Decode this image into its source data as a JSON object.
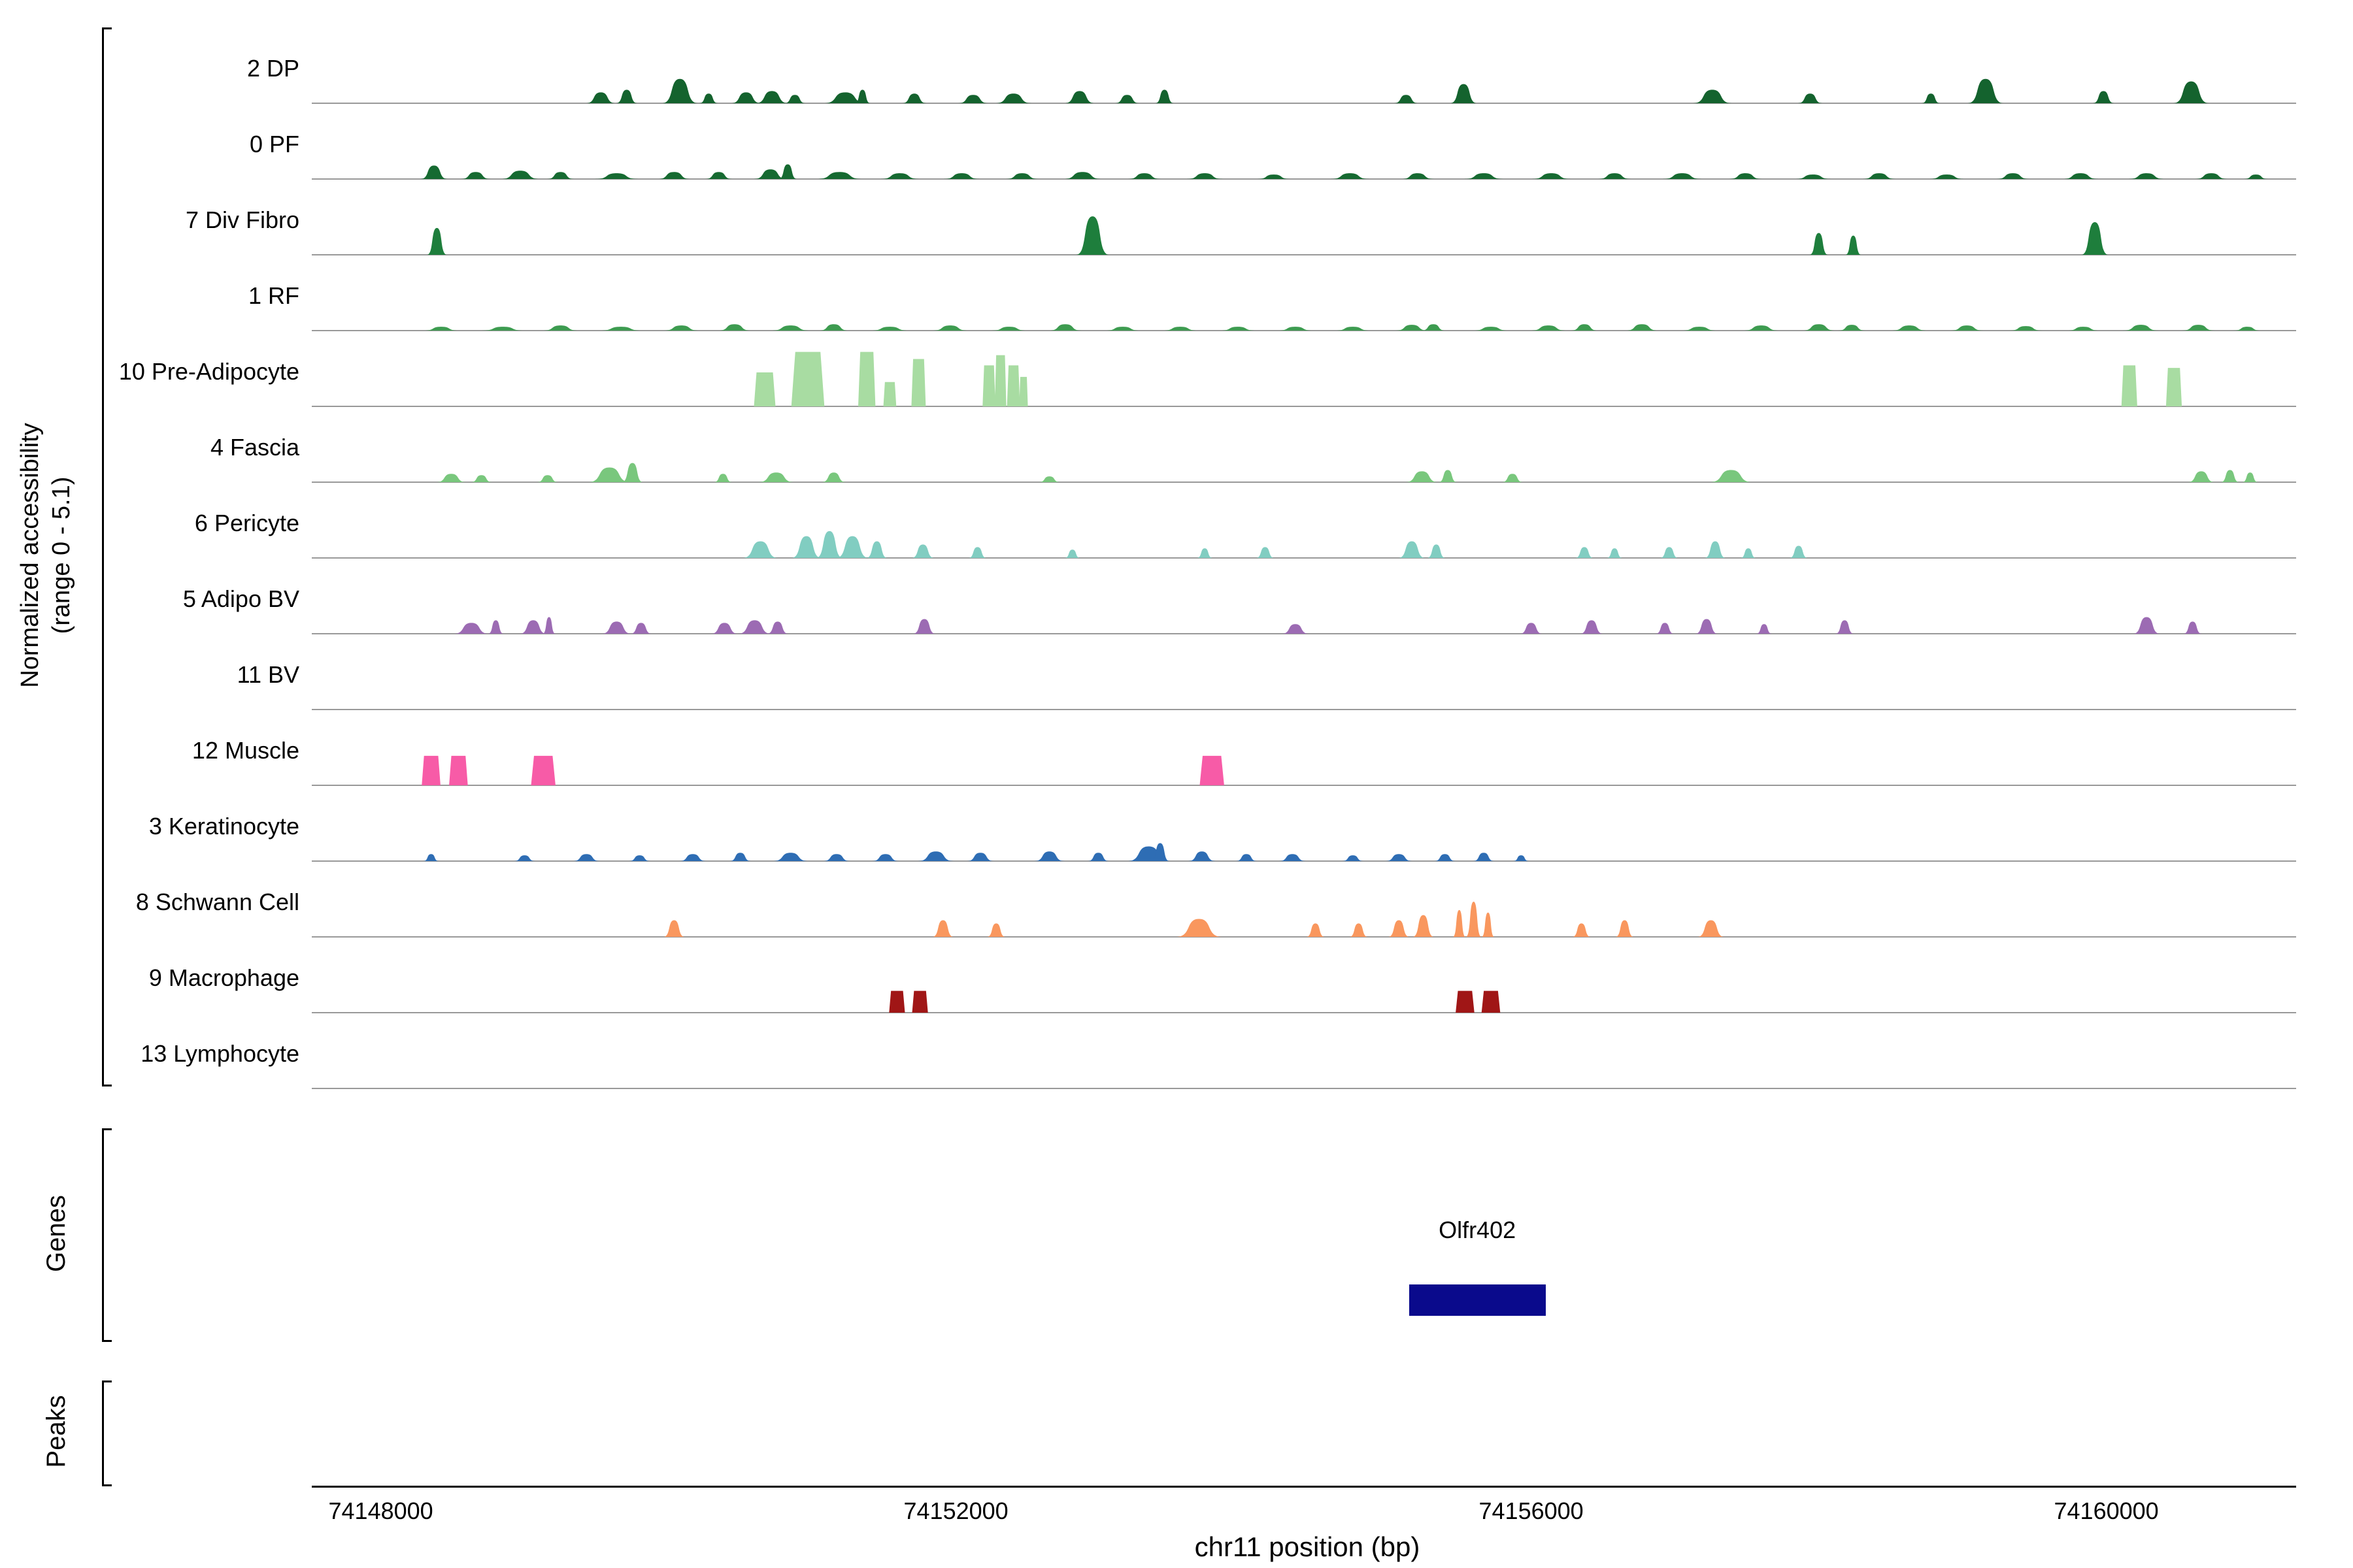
{
  "figure": {
    "y_axis_label_line1": "Normalized accessibility",
    "y_axis_label_line2": "(range 0 - 5.1)",
    "genes_label": "Genes",
    "peaks_label": "Peaks",
    "x_axis_title": "chr11 position (bp)"
  },
  "chart_data": {
    "type": "area",
    "subtype": "genome-coverage-tracks",
    "chromosome": "chr11",
    "x_range": [
      74147520,
      74161320
    ],
    "y_range_per_track": [
      0,
      5.1
    ],
    "x_ticks": [
      74148000,
      74152000,
      74156000,
      74160000
    ],
    "x_tick_labels": [
      "74148000",
      "74152000",
      "74156000",
      "74160000"
    ],
    "baseline_color": "#999999",
    "tracks": [
      {
        "label": "2 DP",
        "color": "#14632E",
        "peaks": [
          [
            74149530,
            210,
            0.85
          ],
          [
            74149710,
            150,
            1.05
          ],
          [
            74150080,
            250,
            1.9
          ],
          [
            74150280,
            130,
            0.75
          ],
          [
            74150540,
            210,
            0.85
          ],
          [
            74150720,
            230,
            0.95
          ],
          [
            74150880,
            150,
            0.65
          ],
          [
            74151230,
            300,
            0.85
          ],
          [
            74151350,
            110,
            1.05
          ],
          [
            74151710,
            170,
            0.75
          ],
          [
            74152120,
            210,
            0.65
          ],
          [
            74152400,
            250,
            0.75
          ],
          [
            74152860,
            210,
            0.95
          ],
          [
            74153190,
            170,
            0.65
          ],
          [
            74153450,
            130,
            1.05
          ],
          [
            74155130,
            170,
            0.65
          ],
          [
            74155530,
            190,
            1.5
          ],
          [
            74157260,
            270,
            1.05
          ],
          [
            74157940,
            170,
            0.75
          ],
          [
            74158780,
            130,
            0.75
          ],
          [
            74159160,
            250,
            1.9
          ],
          [
            74159980,
            150,
            0.95
          ],
          [
            74160590,
            250,
            1.7
          ]
        ]
      },
      {
        "label": "0 PF",
        "color": "#166A31",
        "peaks": [
          [
            74148370,
            190,
            1.05
          ],
          [
            74148660,
            210,
            0.55
          ],
          [
            74148970,
            270,
            0.65
          ],
          [
            74149250,
            190,
            0.55
          ],
          [
            74149640,
            300,
            0.45
          ],
          [
            74150040,
            230,
            0.55
          ],
          [
            74150350,
            190,
            0.55
          ],
          [
            74150710,
            230,
            0.75
          ],
          [
            74150830,
            130,
            1.15
          ],
          [
            74151190,
            320,
            0.55
          ],
          [
            74151610,
            270,
            0.45
          ],
          [
            74152040,
            250,
            0.45
          ],
          [
            74152460,
            230,
            0.45
          ],
          [
            74152880,
            270,
            0.55
          ],
          [
            74153310,
            230,
            0.45
          ],
          [
            74153730,
            250,
            0.45
          ],
          [
            74154210,
            230,
            0.35
          ],
          [
            74154740,
            270,
            0.45
          ],
          [
            74155210,
            230,
            0.45
          ],
          [
            74155670,
            270,
            0.45
          ],
          [
            74156140,
            270,
            0.45
          ],
          [
            74156580,
            230,
            0.45
          ],
          [
            74157050,
            270,
            0.45
          ],
          [
            74157490,
            230,
            0.45
          ],
          [
            74157960,
            250,
            0.35
          ],
          [
            74158420,
            230,
            0.45
          ],
          [
            74158890,
            250,
            0.35
          ],
          [
            74159350,
            230,
            0.45
          ],
          [
            74159820,
            250,
            0.45
          ],
          [
            74160280,
            250,
            0.45
          ],
          [
            74160730,
            230,
            0.45
          ],
          [
            74161040,
            170,
            0.35
          ]
        ]
      },
      {
        "label": "7 Div Fibro",
        "color": "#1E7E3C",
        "peaks": [
          [
            74148390,
            140,
            2.1
          ],
          [
            74152950,
            230,
            3.0
          ],
          [
            74158000,
            130,
            1.7
          ],
          [
            74158240,
            110,
            1.5
          ],
          [
            74159920,
            190,
            2.55
          ]
        ]
      },
      {
        "label": "1 RF",
        "color": "#3D9B50",
        "peaks": [
          [
            74148420,
            250,
            0.3
          ],
          [
            74148850,
            300,
            0.3
          ],
          [
            74149250,
            250,
            0.4
          ],
          [
            74149670,
            300,
            0.3
          ],
          [
            74150090,
            250,
            0.4
          ],
          [
            74150460,
            230,
            0.5
          ],
          [
            74150850,
            270,
            0.4
          ],
          [
            74151150,
            210,
            0.5
          ],
          [
            74151540,
            270,
            0.3
          ],
          [
            74151960,
            250,
            0.4
          ],
          [
            74152370,
            250,
            0.3
          ],
          [
            74152760,
            230,
            0.5
          ],
          [
            74153160,
            250,
            0.3
          ],
          [
            74153560,
            250,
            0.3
          ],
          [
            74153960,
            250,
            0.3
          ],
          [
            74154360,
            250,
            0.3
          ],
          [
            74154760,
            250,
            0.3
          ],
          [
            74155170,
            230,
            0.45
          ],
          [
            74155320,
            170,
            0.5
          ],
          [
            74155720,
            250,
            0.3
          ],
          [
            74156120,
            250,
            0.4
          ],
          [
            74156370,
            190,
            0.5
          ],
          [
            74156770,
            230,
            0.5
          ],
          [
            74157170,
            250,
            0.3
          ],
          [
            74157600,
            250,
            0.4
          ],
          [
            74158000,
            230,
            0.5
          ],
          [
            74158230,
            190,
            0.45
          ],
          [
            74158630,
            250,
            0.4
          ],
          [
            74159030,
            230,
            0.4
          ],
          [
            74159440,
            230,
            0.35
          ],
          [
            74159840,
            230,
            0.3
          ],
          [
            74160240,
            250,
            0.45
          ],
          [
            74160640,
            230,
            0.45
          ],
          [
            74160980,
            190,
            0.3
          ]
        ]
      },
      {
        "label": "10 Pre-Adipocyte",
        "color": "#A8DCA2",
        "peaks": [
          [
            74150670,
            150,
            2.65,
            1
          ],
          [
            74150970,
            230,
            4.25,
            1
          ],
          [
            74151380,
            120,
            4.25,
            1
          ],
          [
            74151540,
            90,
            1.9,
            1
          ],
          [
            74151740,
            100,
            3.7,
            1
          ],
          [
            74152230,
            90,
            3.2,
            1
          ],
          [
            74152310,
            80,
            4.0,
            1
          ],
          [
            74152400,
            90,
            3.2,
            1
          ],
          [
            74152470,
            60,
            2.3,
            1
          ],
          [
            74160160,
            110,
            3.2,
            1
          ],
          [
            74160470,
            110,
            3.0,
            1
          ]
        ]
      },
      {
        "label": "4 Fascia",
        "color": "#79C77D",
        "peaks": [
          [
            74148490,
            210,
            0.65
          ],
          [
            74148700,
            150,
            0.55
          ],
          [
            74149160,
            150,
            0.55
          ],
          [
            74149590,
            300,
            1.15
          ],
          [
            74149750,
            150,
            1.5
          ],
          [
            74150380,
            130,
            0.65
          ],
          [
            74150750,
            250,
            0.75
          ],
          [
            74151150,
            170,
            0.75
          ],
          [
            74152650,
            150,
            0.45
          ],
          [
            74155240,
            230,
            0.85
          ],
          [
            74155420,
            130,
            0.95
          ],
          [
            74155870,
            150,
            0.65
          ],
          [
            74157390,
            300,
            0.95
          ],
          [
            74160660,
            190,
            0.85
          ],
          [
            74160860,
            130,
            0.95
          ],
          [
            74161000,
            110,
            0.75
          ]
        ]
      },
      {
        "label": "6 Pericyte",
        "color": "#81CDC1",
        "peaks": [
          [
            74150640,
            250,
            1.3
          ],
          [
            74150960,
            210,
            1.7
          ],
          [
            74151120,
            190,
            2.1
          ],
          [
            74151280,
            230,
            1.7
          ],
          [
            74151450,
            150,
            1.3
          ],
          [
            74151770,
            160,
            1.05
          ],
          [
            74152150,
            130,
            0.85
          ],
          [
            74152810,
            110,
            0.65
          ],
          [
            74153730,
            110,
            0.75
          ],
          [
            74154150,
            130,
            0.85
          ],
          [
            74155170,
            190,
            1.3
          ],
          [
            74155340,
            130,
            1.05
          ],
          [
            74156370,
            130,
            0.85
          ],
          [
            74156580,
            110,
            0.75
          ],
          [
            74156960,
            130,
            0.85
          ],
          [
            74157280,
            150,
            1.3
          ],
          [
            74157510,
            110,
            0.75
          ],
          [
            74157860,
            130,
            0.95
          ]
        ]
      },
      {
        "label": "5 Adipo BV",
        "color": "#9C6BB3",
        "peaks": [
          [
            74148630,
            250,
            0.85
          ],
          [
            74148800,
            110,
            1.05
          ],
          [
            74149060,
            190,
            1.05
          ],
          [
            74149170,
            90,
            1.3
          ],
          [
            74149640,
            210,
            0.95
          ],
          [
            74149810,
            150,
            0.85
          ],
          [
            74150390,
            190,
            0.85
          ],
          [
            74150600,
            230,
            1.05
          ],
          [
            74150760,
            150,
            0.95
          ],
          [
            74151780,
            160,
            1.15
          ],
          [
            74154360,
            190,
            0.75
          ],
          [
            74156000,
            160,
            0.85
          ],
          [
            74156420,
            160,
            1.05
          ],
          [
            74156930,
            130,
            0.85
          ],
          [
            74157220,
            160,
            1.15
          ],
          [
            74157620,
            110,
            0.75
          ],
          [
            74158180,
            130,
            1.05
          ],
          [
            74160280,
            190,
            1.3
          ],
          [
            74160600,
            130,
            0.95
          ]
        ]
      },
      {
        "label": "11 BV",
        "color": "#6BAED6",
        "peaks": []
      },
      {
        "label": "12 Muscle",
        "color": "#F75BA7",
        "peaks": [
          [
            74148350,
            130,
            2.3,
            1
          ],
          [
            74148540,
            130,
            2.3,
            1
          ],
          [
            74149130,
            170,
            2.3,
            1
          ],
          [
            74153780,
            170,
            2.3,
            1
          ]
        ]
      },
      {
        "label": "3 Keratinocyte",
        "color": "#2E6DB4",
        "peaks": [
          [
            74148350,
            110,
            0.55
          ],
          [
            74149000,
            150,
            0.45
          ],
          [
            74149430,
            190,
            0.55
          ],
          [
            74149800,
            150,
            0.45
          ],
          [
            74150170,
            190,
            0.55
          ],
          [
            74150500,
            150,
            0.65
          ],
          [
            74150850,
            250,
            0.65
          ],
          [
            74151170,
            190,
            0.55
          ],
          [
            74151510,
            190,
            0.55
          ],
          [
            74151860,
            250,
            0.75
          ],
          [
            74152170,
            190,
            0.65
          ],
          [
            74152650,
            210,
            0.75
          ],
          [
            74152990,
            150,
            0.65
          ],
          [
            74153340,
            300,
            1.15
          ],
          [
            74153420,
            130,
            1.4
          ],
          [
            74153710,
            190,
            0.75
          ],
          [
            74154020,
            150,
            0.55
          ],
          [
            74154340,
            190,
            0.55
          ],
          [
            74154760,
            150,
            0.45
          ],
          [
            74155080,
            190,
            0.55
          ],
          [
            74155400,
            150,
            0.55
          ],
          [
            74155670,
            150,
            0.65
          ],
          [
            74155930,
            110,
            0.45
          ]
        ]
      },
      {
        "label": "8 Schwann Cell",
        "color": "#F9975E",
        "peaks": [
          [
            74150040,
            150,
            1.3
          ],
          [
            74151910,
            150,
            1.3
          ],
          [
            74152280,
            130,
            1.05
          ],
          [
            74153690,
            320,
            1.4
          ],
          [
            74154500,
            130,
            1.05
          ],
          [
            74154800,
            130,
            1.05
          ],
          [
            74155080,
            150,
            1.3
          ],
          [
            74155250,
            150,
            1.7
          ],
          [
            74155500,
            90,
            2.1
          ],
          [
            74155600,
            110,
            2.75
          ],
          [
            74155700,
            90,
            1.9
          ],
          [
            74156350,
            130,
            1.05
          ],
          [
            74156650,
            130,
            1.3
          ],
          [
            74157250,
            190,
            1.3
          ]
        ]
      },
      {
        "label": "9 Macrophage",
        "color": "#A01616",
        "peaks": [
          [
            74151590,
            110,
            1.7,
            1
          ],
          [
            74151750,
            110,
            1.7,
            1
          ],
          [
            74155540,
            130,
            1.7,
            1
          ],
          [
            74155720,
            130,
            1.7,
            1
          ]
        ]
      },
      {
        "label": "13 Lymphocyte",
        "color": "#888888",
        "peaks": []
      }
    ],
    "gene": {
      "name": "Olfr402",
      "start": 74155150,
      "end": 74156100,
      "color": "#0A0A8C"
    },
    "peaks_track": {
      "items": []
    }
  }
}
